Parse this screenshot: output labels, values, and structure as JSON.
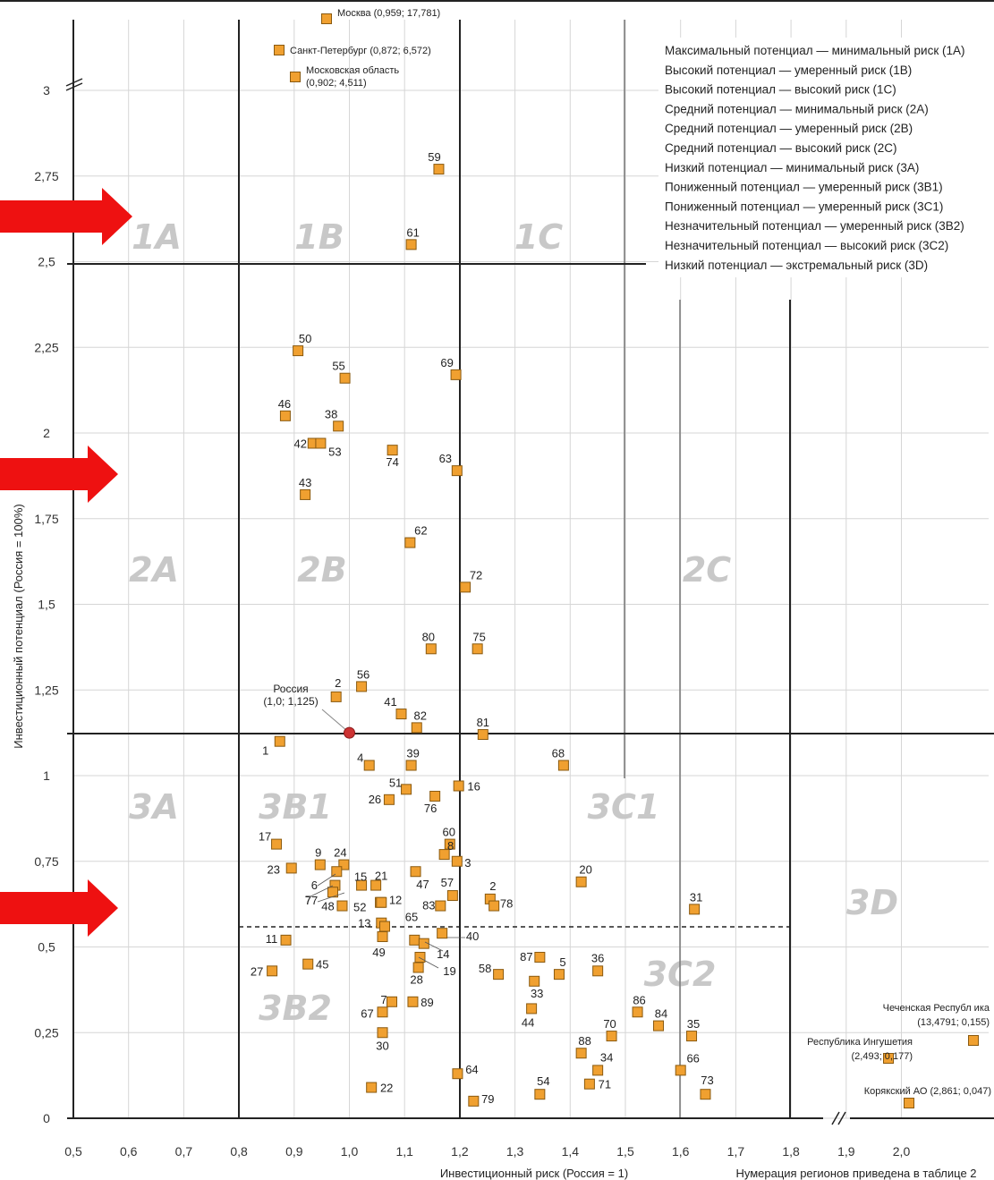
{
  "chart_data": {
    "type": "scatter",
    "xlabel": "Инвестиционный риск (Россия = 1)",
    "ylabel": "Инвестиционный потенциал (Россия = 100%)",
    "note": "Нумерация регионов приведена в таблице 2",
    "x_ticks": [
      "0,5",
      "0,6",
      "0,7",
      "0,8",
      "0,9",
      "1,0",
      "1,1",
      "1,2",
      "1,3",
      "1,4",
      "1,5",
      "1,6",
      "1,7",
      "1,8",
      "1,9",
      "2,0"
    ],
    "y_ticks": [
      "0",
      "0,25",
      "0,5",
      "0,75",
      "1",
      "1,25",
      "1,5",
      "1,75",
      "2",
      "2,25",
      "2,5",
      "2,75",
      "3"
    ],
    "xlim": [
      0.5,
      2.0
    ],
    "ylim": [
      0,
      3
    ],
    "color": "#f0a030",
    "russia_color": "#cc3333",
    "grid": true,
    "zones": [
      "1A",
      "1B",
      "1C",
      "2A",
      "2B",
      "2C",
      "3A",
      "3B1",
      "3C1",
      "3D",
      "3B2",
      "3C2"
    ],
    "legend": [
      "Максимальный потенциал — минимальный риск (1A)",
      "Высокий потенциал — умеренный риск (1B)",
      "Высокий потенциал — высокий риск (1C)",
      "Средний потенциал — минимальный риск (2A)",
      "Средний потенциал — умеренный риск (2B)",
      "Средний потенциал — высокий риск (2C)",
      "Низкий потенциал — минимальный риск (3A)",
      "Пониженный потенциал — умеренный риск (3B1)",
      "Пониженный потенциал — умеренный риск (3C1)",
      "Незначительный потенциал — умеренный риск (3B2)",
      "Незначительный потенциал — высокий риск (3C2)",
      "Низкий потенциал — экстремальный риск (3D)"
    ],
    "russia": {
      "label1": "Россия",
      "label2": "(1,0; 1,125)",
      "x": 1.0,
      "y": 1.125
    },
    "outliers_top": [
      {
        "label": "Москва (0,959; 17,781)",
        "x": 0.959,
        "y": 17.781
      },
      {
        "label": "Санкт-Петербург (0,872; 6,572)",
        "x": 0.872,
        "y": 6.572
      },
      {
        "label1": "Московская область",
        "label2": "(0,902; 4,511)",
        "x": 0.902,
        "y": 4.511
      }
    ],
    "outliers_right": [
      {
        "label1": "Чеченская Республ ика",
        "label2": "(13,4791; 0,155)",
        "x": 13.4791,
        "y": 0.155
      },
      {
        "label1": "Республика Ингушетия",
        "label2": "(2,493; 0,177)",
        "x": 2.493,
        "y": 0.177
      },
      {
        "label1": "Корякский АО (2,861; 0,047)",
        "x": 2.861,
        "y": 0.047
      }
    ],
    "points": [
      {
        "id": "59",
        "x": 1.162,
        "y": 2.77
      },
      {
        "id": "61",
        "x": 1.112,
        "y": 2.55
      },
      {
        "id": "50",
        "x": 0.907,
        "y": 2.24
      },
      {
        "id": "55",
        "x": 0.992,
        "y": 2.16
      },
      {
        "id": "69",
        "x": 1.193,
        "y": 2.17
      },
      {
        "id": "46",
        "x": 0.884,
        "y": 2.05
      },
      {
        "id": "38",
        "x": 0.98,
        "y": 2.02
      },
      {
        "id": "42",
        "x": 0.934,
        "y": 1.97
      },
      {
        "id": "53",
        "x": 0.948,
        "y": 1.97
      },
      {
        "id": "74",
        "x": 1.078,
        "y": 1.95
      },
      {
        "id": "63",
        "x": 1.195,
        "y": 1.89
      },
      {
        "id": "43",
        "x": 0.92,
        "y": 1.82
      },
      {
        "id": "62",
        "x": 1.11,
        "y": 1.68
      },
      {
        "id": "72",
        "x": 1.21,
        "y": 1.55
      },
      {
        "id": "80",
        "x": 1.148,
        "y": 1.37
      },
      {
        "id": "75",
        "x": 1.232,
        "y": 1.37
      },
      {
        "id": "2",
        "x": 0.976,
        "y": 1.23
      },
      {
        "id": "56",
        "x": 1.022,
        "y": 1.26
      },
      {
        "id": "41",
        "x": 1.094,
        "y": 1.18
      },
      {
        "id": "82",
        "x": 1.122,
        "y": 1.14
      },
      {
        "id": "81",
        "x": 1.242,
        "y": 1.12
      },
      {
        "id": "1",
        "x": 0.874,
        "y": 1.1
      },
      {
        "id": "4",
        "x": 1.036,
        "y": 1.03
      },
      {
        "id": "39",
        "x": 1.112,
        "y": 1.03
      },
      {
        "id": "68",
        "x": 1.388,
        "y": 1.03
      },
      {
        "id": "16",
        "x": 1.198,
        "y": 0.97
      },
      {
        "id": "51",
        "x": 1.103,
        "y": 0.96
      },
      {
        "id": "26",
        "x": 1.072,
        "y": 0.93
      },
      {
        "id": "76",
        "x": 1.155,
        "y": 0.94
      },
      {
        "id": "17",
        "x": 0.868,
        "y": 0.8
      },
      {
        "id": "60",
        "x": 1.182,
        "y": 0.8
      },
      {
        "id": "8",
        "x": 1.172,
        "y": 0.77
      },
      {
        "id": "3",
        "x": 1.195,
        "y": 0.75
      },
      {
        "id": "9",
        "x": 0.947,
        "y": 0.74
      },
      {
        "id": "24",
        "x": 0.99,
        "y": 0.74
      },
      {
        "id": "23",
        "x": 0.895,
        "y": 0.73
      },
      {
        "id": "6",
        "x": 0.977,
        "y": 0.72
      },
      {
        "id": "47",
        "x": 1.12,
        "y": 0.72
      },
      {
        "id": "20",
        "x": 1.42,
        "y": 0.69
      },
      {
        "id": "15",
        "x": 1.022,
        "y": 0.68
      },
      {
        "id": "21",
        "x": 1.048,
        "y": 0.68
      },
      {
        "id": "7",
        "x": 0.974,
        "y": 0.68
      },
      {
        "id": "57",
        "x": 1.187,
        "y": 0.65
      },
      {
        "id": "2b",
        "x": 1.255,
        "y": 0.64
      },
      {
        "id": "77",
        "x": 0.97,
        "y": 0.66
      },
      {
        "id": "12",
        "x": 1.056,
        "y": 0.63
      },
      {
        "id": "52",
        "x": 1.058,
        "y": 0.63
      },
      {
        "id": "83",
        "x": 1.165,
        "y": 0.62
      },
      {
        "id": "78",
        "x": 1.262,
        "y": 0.62
      },
      {
        "id": "31",
        "x": 1.625,
        "y": 0.61
      },
      {
        "id": "48",
        "x": 0.987,
        "y": 0.62
      },
      {
        "id": "13",
        "x": 1.058,
        "y": 0.57
      },
      {
        "id": "65",
        "x": 1.064,
        "y": 0.56
      },
      {
        "id": "40",
        "x": 1.168,
        "y": 0.54
      },
      {
        "id": "49",
        "x": 1.06,
        "y": 0.53
      },
      {
        "id": "11",
        "x": 0.885,
        "y": 0.52
      },
      {
        "id": "14",
        "x": 1.118,
        "y": 0.52
      },
      {
        "id": "14b",
        "x": 1.135,
        "y": 0.51
      },
      {
        "id": "87",
        "x": 1.345,
        "y": 0.47
      },
      {
        "id": "36",
        "x": 1.45,
        "y": 0.43
      },
      {
        "id": "19",
        "x": 1.128,
        "y": 0.47
      },
      {
        "id": "28",
        "x": 1.125,
        "y": 0.44
      },
      {
        "id": "45",
        "x": 0.925,
        "y": 0.45
      },
      {
        "id": "27",
        "x": 0.86,
        "y": 0.43
      },
      {
        "id": "58",
        "x": 1.27,
        "y": 0.42
      },
      {
        "id": "5",
        "x": 1.38,
        "y": 0.42
      },
      {
        "id": "33",
        "x": 1.335,
        "y": 0.4
      },
      {
        "id": "7b",
        "x": 1.077,
        "y": 0.34
      },
      {
        "id": "89",
        "x": 1.115,
        "y": 0.34
      },
      {
        "id": "67",
        "x": 1.06,
        "y": 0.31
      },
      {
        "id": "44",
        "x": 1.33,
        "y": 0.32
      },
      {
        "id": "86",
        "x": 1.522,
        "y": 0.31
      },
      {
        "id": "84",
        "x": 1.56,
        "y": 0.27
      },
      {
        "id": "70",
        "x": 1.475,
        "y": 0.24
      },
      {
        "id": "35",
        "x": 1.62,
        "y": 0.24
      },
      {
        "id": "30",
        "x": 1.06,
        "y": 0.25
      },
      {
        "id": "88",
        "x": 1.42,
        "y": 0.19
      },
      {
        "id": "34",
        "x": 1.45,
        "y": 0.14
      },
      {
        "id": "66",
        "x": 1.6,
        "y": 0.14
      },
      {
        "id": "64",
        "x": 1.196,
        "y": 0.13
      },
      {
        "id": "71",
        "x": 1.435,
        "y": 0.1
      },
      {
        "id": "54",
        "x": 1.345,
        "y": 0.07
      },
      {
        "id": "73",
        "x": 1.645,
        "y": 0.07
      },
      {
        "id": "79",
        "x": 1.225,
        "y": 0.05
      },
      {
        "id": "22",
        "x": 1.04,
        "y": 0.09
      }
    ]
  }
}
